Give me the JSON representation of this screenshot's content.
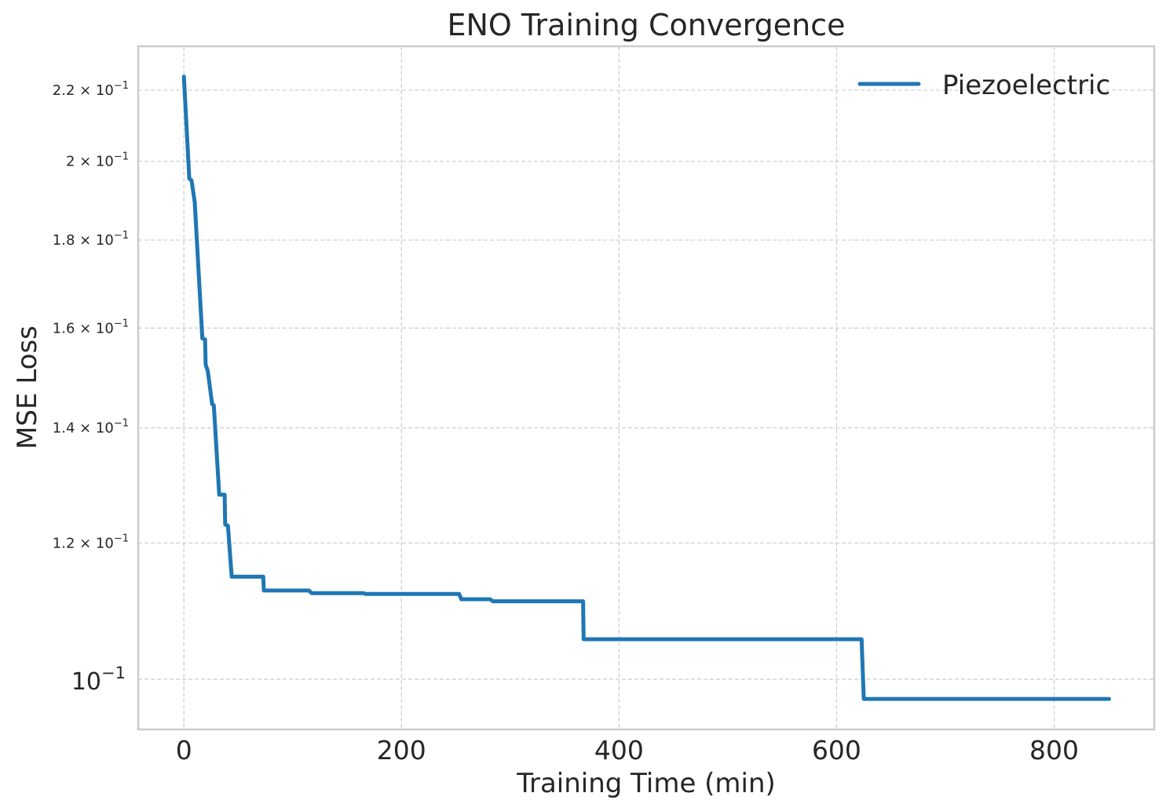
{
  "chart_data": {
    "type": "line",
    "title": "ENO Training Convergence",
    "xlabel": "Training Time (min)",
    "ylabel": "MSE Loss",
    "yscale": "log",
    "xlim": [
      -42,
      892
    ],
    "ylim": [
      0.0935,
      0.2333
    ],
    "grid": true,
    "legend_position": "upper right",
    "x_ticks": [
      0,
      200,
      400,
      600,
      800
    ],
    "x_tick_labels": [
      "0",
      "200",
      "400",
      "600",
      "800"
    ],
    "y_ticks": [
      0.1,
      0.12,
      0.14,
      0.16,
      0.18,
      0.2,
      0.22
    ],
    "y_tick_labels": [
      {
        "mantissa": "",
        "base": "10",
        "exp": "−1",
        "major": true
      },
      {
        "mantissa": "1.2",
        "base": "10",
        "exp": "−1",
        "major": false
      },
      {
        "mantissa": "1.4",
        "base": "10",
        "exp": "−1",
        "major": false
      },
      {
        "mantissa": "1.6",
        "base": "10",
        "exp": "−1",
        "major": false
      },
      {
        "mantissa": "1.8",
        "base": "10",
        "exp": "−1",
        "major": false
      },
      {
        "mantissa": "2",
        "base": "10",
        "exp": "−1",
        "major": false
      },
      {
        "mantissa": "2.2",
        "base": "10",
        "exp": "−1",
        "major": false
      }
    ],
    "series": [
      {
        "name": "Piezoelectric",
        "color": "#1f77b4",
        "x": [
          0,
          5,
          7,
          10,
          17,
          19.5,
          20,
          22,
          26,
          27.5,
          32.5,
          37.5,
          38,
          40.5,
          44,
          73,
          73.5,
          115,
          117.5,
          165,
          167,
          253,
          255,
          281.5,
          284,
          367,
          367.5,
          623,
          625,
          850.5
        ],
        "y": [
          0.224,
          0.1954,
          0.195,
          0.1894,
          0.1578,
          0.1576,
          0.1524,
          0.151,
          0.1445,
          0.1443,
          0.128,
          0.128,
          0.123,
          0.1228,
          0.1147,
          0.1147,
          0.1126,
          0.1126,
          0.1122,
          0.1122,
          0.1121,
          0.1121,
          0.1113,
          0.1113,
          0.111,
          0.111,
          0.1055,
          0.1055,
          0.0974,
          0.0974
        ]
      }
    ]
  },
  "colors": {
    "background": "#ffffff",
    "axes_edge": "#cccccc",
    "grid": "#cccccc",
    "text": "#262626"
  }
}
